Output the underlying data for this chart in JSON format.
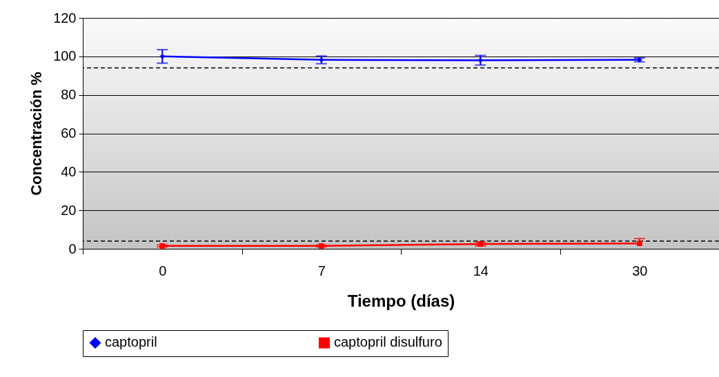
{
  "chart_data": {
    "type": "line",
    "xlabel": "Tiempo (días)",
    "ylabel": "Concentración %",
    "categories": [
      "0",
      "7",
      "14",
      "30"
    ],
    "series": [
      {
        "name": "captopril",
        "color": "#0000ff",
        "marker": "diamond",
        "values": [
          100,
          98.2,
          98,
          98.2
        ],
        "errors": [
          3.5,
          2,
          2.5,
          1
        ]
      },
      {
        "name": "captopril disulfuro",
        "color": "#ff0000",
        "marker": "square",
        "values": [
          1.5,
          1.5,
          2.5,
          2.8
        ],
        "errors": [
          0.5,
          0.5,
          1,
          [
            2.8,
            5.3
          ]
        ]
      }
    ],
    "ylim": [
      0,
      120
    ],
    "yticks": [
      0,
      20,
      40,
      60,
      80,
      100,
      120
    ],
    "grid": "y",
    "legend": "bottom",
    "ref_lines": [
      {
        "axis": "y",
        "value": 94,
        "color": "#000000",
        "line_style": "dashed"
      },
      {
        "axis": "y",
        "value": 4,
        "color": "#000000",
        "line_style": "dashed"
      }
    ]
  }
}
